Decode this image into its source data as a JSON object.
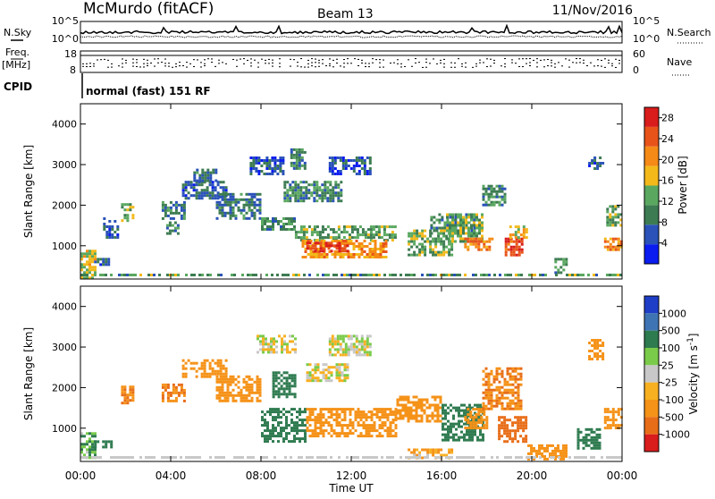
{
  "header": {
    "station": "McMurdo (fitACF)",
    "beam": "Beam 13",
    "date": "11/Nov/2016"
  },
  "status_panel": {
    "nsky_label": "N.Sky",
    "nsearch_label": "N.Search",
    "noise_tick_top": "10^5",
    "noise_tick_bottom": "10^0",
    "freq_label_line1": "Freq.",
    "freq_label_line2": "[MHz]",
    "freq_ticks": [
      "18",
      "8"
    ],
    "nave_label": "Nave",
    "nave_ticks": [
      "60",
      "0"
    ],
    "cpid_label": "CPID",
    "cpid_text": "normal (fast) 151 RF"
  },
  "colors": {
    "power_scale": [
      "#0a1cf0",
      "#2a52b8",
      "#3d7c52",
      "#5aa860",
      "#f3b91a",
      "#f58a16",
      "#e8531a",
      "#d91c1c"
    ],
    "velocity_scale": [
      "#1f3ec8",
      "#3f74b4",
      "#2f7b50",
      "#7acb4a",
      "#c8c8c8",
      "#f7b020",
      "#f59218",
      "#e86d18",
      "#d91c1c"
    ]
  },
  "chart_data": [
    {
      "type": "heatmap",
      "name": "power",
      "ylabel": "Slant Range [km]",
      "xlabel": "",
      "yticks": [
        "1000",
        "2000",
        "3000",
        "4000"
      ],
      "ylim": [
        180,
        4500
      ],
      "xlim": [
        0,
        24
      ],
      "colorbar_label": "Power [dB]",
      "colorbar_ticks": [
        "4",
        "8",
        "12",
        "16",
        "20",
        "24",
        "28"
      ],
      "colorbar_range": [
        0,
        30
      ],
      "regions": [
        {
          "t": [
            0.0,
            0.7
          ],
          "r": [
            200,
            900
          ],
          "v": 16
        },
        {
          "t": [
            0.6,
            1.3
          ],
          "r": [
            550,
            700
          ],
          "v": 6
        },
        {
          "t": [
            1.0,
            1.6
          ],
          "r": [
            1200,
            1700
          ],
          "v": 6
        },
        {
          "t": [
            1.8,
            2.3
          ],
          "r": [
            1650,
            2050
          ],
          "v": 14
        },
        {
          "t": [
            3.6,
            4.6
          ],
          "r": [
            1700,
            2100
          ],
          "v": 8
        },
        {
          "t": [
            3.8,
            4.3
          ],
          "r": [
            1300,
            1600
          ],
          "v": 10
        },
        {
          "t": [
            4.5,
            6.5
          ],
          "r": [
            2200,
            2600
          ],
          "v": 7
        },
        {
          "t": [
            5.0,
            6.0
          ],
          "r": [
            2600,
            2900
          ],
          "v": 8
        },
        {
          "t": [
            6.0,
            8.0
          ],
          "r": [
            1700,
            2300
          ],
          "v": 8
        },
        {
          "t": [
            7.5,
            9.0
          ],
          "r": [
            2800,
            3200
          ],
          "v": 6
        },
        {
          "t": [
            8.0,
            9.5
          ],
          "r": [
            1400,
            1700
          ],
          "v": 10
        },
        {
          "t": [
            9.0,
            11.5
          ],
          "r": [
            2100,
            2600
          ],
          "v": 10
        },
        {
          "t": [
            9.3,
            10.0
          ],
          "r": [
            2900,
            3400
          ],
          "v": 10
        },
        {
          "t": [
            9.5,
            14.0
          ],
          "r": [
            1150,
            1500
          ],
          "v": 12
        },
        {
          "t": [
            9.8,
            13.5
          ],
          "r": [
            750,
            1150
          ],
          "v": 20
        },
        {
          "t": [
            10.0,
            11.8
          ],
          "r": [
            900,
            1100
          ],
          "v": 27
        },
        {
          "t": [
            11.0,
            12.8
          ],
          "r": [
            2800,
            3200
          ],
          "v": 6
        },
        {
          "t": [
            14.5,
            16.5
          ],
          "r": [
            800,
            1400
          ],
          "v": 13
        },
        {
          "t": [
            15.5,
            17.5
          ],
          "r": [
            1300,
            1800
          ],
          "v": 9
        },
        {
          "t": [
            16.2,
            17.8
          ],
          "r": [
            1100,
            1800
          ],
          "v": 13
        },
        {
          "t": [
            17.0,
            18.3
          ],
          "r": [
            900,
            1200
          ],
          "v": 22
        },
        {
          "t": [
            17.8,
            18.8
          ],
          "r": [
            2000,
            2500
          ],
          "v": 10
        },
        {
          "t": [
            18.8,
            19.6
          ],
          "r": [
            800,
            1200
          ],
          "v": 26
        },
        {
          "t": [
            19.0,
            19.8
          ],
          "r": [
            1200,
            1500
          ],
          "v": 17
        },
        {
          "t": [
            21.0,
            21.5
          ],
          "r": [
            350,
            700
          ],
          "v": 10
        },
        {
          "t": [
            22.5,
            23.2
          ],
          "r": [
            2900,
            3200
          ],
          "v": 6
        },
        {
          "t": [
            23.2,
            24.0
          ],
          "r": [
            900,
            1200
          ],
          "v": 22
        },
        {
          "t": [
            23.3,
            24.0
          ],
          "r": [
            1500,
            2000
          ],
          "v": 12
        }
      ]
    },
    {
      "type": "heatmap",
      "name": "velocity",
      "ylabel": "Slant Range [km]",
      "xlabel": "Time UT",
      "xticks": [
        "00:00",
        "04:00",
        "08:00",
        "12:00",
        "16:00",
        "20:00",
        "00:00"
      ],
      "yticks": [
        "1000",
        "2000",
        "3000",
        "4000"
      ],
      "ylim": [
        180,
        4500
      ],
      "xlim": [
        0,
        24
      ],
      "colorbar_label": "Velocity [m s^-1]",
      "colorbar_ticks": [
        "1000",
        "500",
        "100",
        "25",
        "-25",
        "-100",
        "-500",
        "-1000"
      ],
      "regions": [
        {
          "t": [
            0.0,
            0.7
          ],
          "r": [
            250,
            900
          ],
          "v": 100
        },
        {
          "t": [
            0.6,
            1.4
          ],
          "r": [
            550,
            700
          ],
          "v": 300
        },
        {
          "t": [
            1.8,
            2.3
          ],
          "r": [
            1650,
            2050
          ],
          "v": -500
        },
        {
          "t": [
            3.6,
            4.6
          ],
          "r": [
            1700,
            2100
          ],
          "v": -500
        },
        {
          "t": [
            4.5,
            6.5
          ],
          "r": [
            2300,
            2700
          ],
          "v": -300
        },
        {
          "t": [
            6.0,
            8.0
          ],
          "r": [
            1700,
            2300
          ],
          "v": -300
        },
        {
          "t": [
            7.8,
            9.5
          ],
          "r": [
            2900,
            3300
          ],
          "v": 0
        },
        {
          "t": [
            8.0,
            10.0
          ],
          "r": [
            700,
            1500
          ],
          "v": 300
        },
        {
          "t": [
            8.5,
            9.5
          ],
          "r": [
            1800,
            2400
          ],
          "v": 300
        },
        {
          "t": [
            10.0,
            11.8
          ],
          "r": [
            2200,
            2600
          ],
          "v": 0
        },
        {
          "t": [
            11.0,
            12.8
          ],
          "r": [
            2800,
            3300
          ],
          "v": 0
        },
        {
          "t": [
            10.0,
            14.0
          ],
          "r": [
            800,
            1500
          ],
          "v": -300
        },
        {
          "t": [
            14.0,
            16.0
          ],
          "r": [
            1200,
            1800
          ],
          "v": -300
        },
        {
          "t": [
            14.5,
            16.5
          ],
          "r": [
            300,
            500
          ],
          "v": -100
        },
        {
          "t": [
            16.0,
            17.8
          ],
          "r": [
            700,
            1600
          ],
          "v": 300
        },
        {
          "t": [
            17.0,
            18.0
          ],
          "r": [
            1000,
            1500
          ],
          "v": -200
        },
        {
          "t": [
            17.8,
            19.5
          ],
          "r": [
            1500,
            2500
          ],
          "v": -500
        },
        {
          "t": [
            18.5,
            19.8
          ],
          "r": [
            700,
            1300
          ],
          "v": -700
        },
        {
          "t": [
            19.8,
            21.5
          ],
          "r": [
            250,
            600
          ],
          "v": -300
        },
        {
          "t": [
            22.0,
            23.0
          ],
          "r": [
            500,
            1000
          ],
          "v": 300
        },
        {
          "t": [
            22.5,
            23.2
          ],
          "r": [
            2700,
            3200
          ],
          "v": -300
        },
        {
          "t": [
            23.2,
            24.0
          ],
          "r": [
            1000,
            1500
          ],
          "v": -300
        }
      ]
    }
  ]
}
